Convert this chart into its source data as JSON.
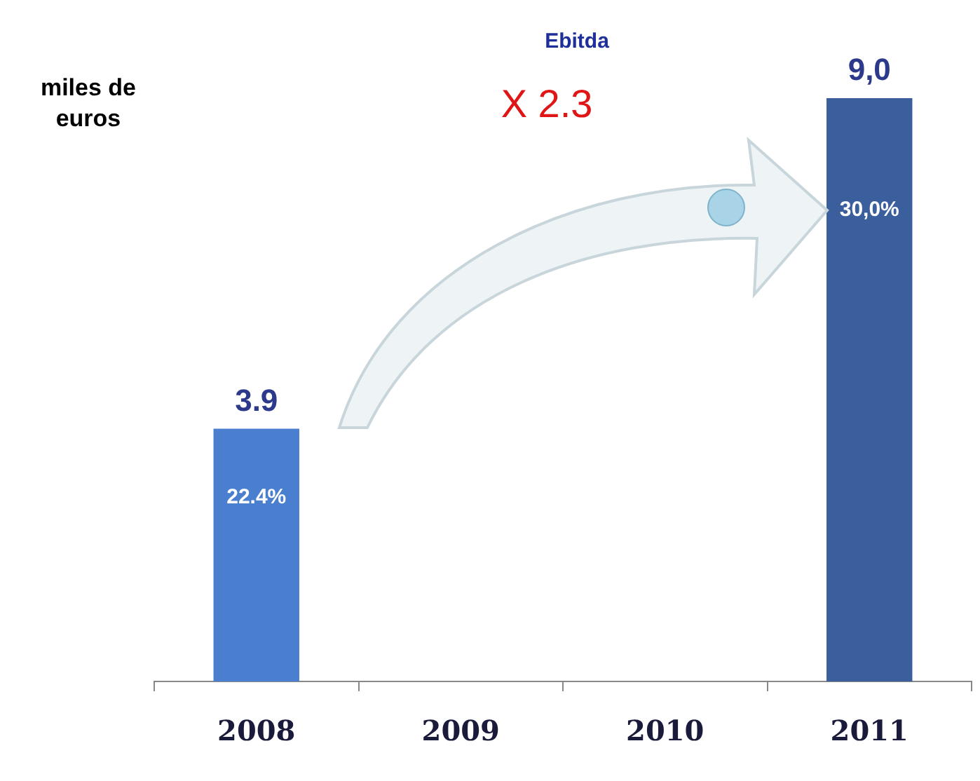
{
  "chart_data": {
    "type": "bar",
    "title": "Ebitda",
    "ylabel": "miles de euros",
    "categories": [
      "2008",
      "2009",
      "2010",
      "2011"
    ],
    "values": [
      3.9,
      null,
      null,
      9.0
    ],
    "colors": [
      "#4a7fd0",
      "#4a7fd0",
      "#4a7fd0",
      "#3b5f9c"
    ],
    "value_labels": [
      "3.9",
      null,
      null,
      "9,0"
    ],
    "annotations": [
      "X 2.3",
      "22.4%",
      "30,0%"
    ],
    "grid": false,
    "legend": false,
    "tick_labels": "x"
  }
}
